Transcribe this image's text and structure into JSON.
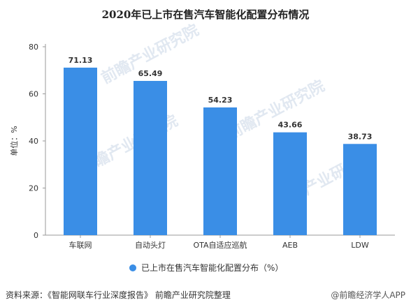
{
  "chart_data": {
    "type": "bar",
    "title": "2020年已上市在售汽车智能化配置分布情况",
    "ylabel": "单位：%",
    "ylim": [
      0,
      80
    ],
    "yticks": [
      0,
      20,
      40,
      60,
      80
    ],
    "grid": false,
    "categories": [
      "车联网",
      "自动头灯",
      "OTA自适应巡航",
      "AEB",
      "LDW"
    ],
    "series": [
      {
        "name": "已上市在售汽车智能化配置分布（%）",
        "values": [
          71.13,
          65.49,
          54.23,
          43.66,
          38.73
        ]
      }
    ],
    "data_labels": [
      "71.13",
      "65.49",
      "54.23",
      "43.66",
      "38.73"
    ],
    "legend_position": "bottom",
    "colors": {
      "bar": "#3a8ee6",
      "axis": "#999999",
      "text": "#333333"
    }
  },
  "footer": {
    "source": "资料来源：《智能网联车行业深度报告》 前瞻产业研究院整理",
    "brand": "@前瞻经济学人APP"
  },
  "watermark": {
    "text": "前瞻产业研究院"
  }
}
